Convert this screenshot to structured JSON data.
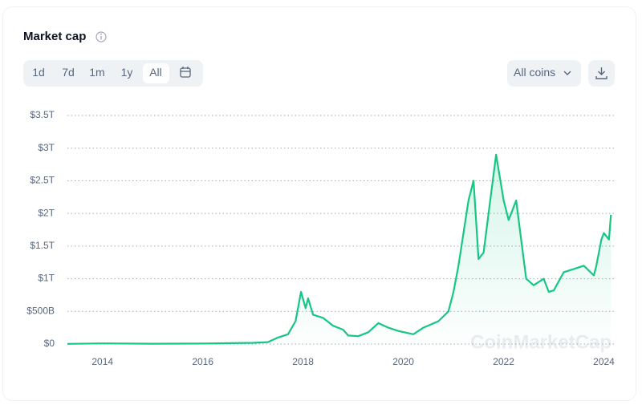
{
  "header": {
    "title": "Market cap"
  },
  "controls": {
    "ranges": [
      "1d",
      "7d",
      "1m",
      "1y",
      "All"
    ],
    "active_range": 4,
    "coin_filter": "All coins"
  },
  "watermark": "CoinMarketCap",
  "chart_data": {
    "type": "line",
    "color": "#16c784",
    "x": [
      2013.3,
      2014.0,
      2015.0,
      2016.0,
      2017.0,
      2017.3,
      2017.5,
      2017.7,
      2017.85,
      2017.96,
      2018.05,
      2018.1,
      2018.2,
      2018.4,
      2018.6,
      2018.8,
      2018.9,
      2019.1,
      2019.3,
      2019.5,
      2019.7,
      2019.9,
      2020.2,
      2020.4,
      2020.7,
      2020.9,
      2021.0,
      2021.1,
      2021.3,
      2021.4,
      2021.5,
      2021.6,
      2021.7,
      2021.85,
      2022.0,
      2022.1,
      2022.25,
      2022.35,
      2022.45,
      2022.6,
      2022.8,
      2022.9,
      2023.0,
      2023.2,
      2023.4,
      2023.6,
      2023.8,
      2023.85,
      2023.95,
      2024.0,
      2024.1,
      2024.14
    ],
    "values": [
      0.002,
      0.01,
      0.005,
      0.007,
      0.018,
      0.03,
      0.1,
      0.15,
      0.35,
      0.8,
      0.55,
      0.7,
      0.45,
      0.4,
      0.28,
      0.22,
      0.13,
      0.12,
      0.18,
      0.32,
      0.25,
      0.2,
      0.15,
      0.25,
      0.35,
      0.5,
      0.8,
      1.2,
      2.2,
      2.5,
      1.3,
      1.4,
      2.0,
      2.9,
      2.2,
      1.9,
      2.2,
      1.6,
      1.0,
      0.9,
      1.0,
      0.8,
      0.82,
      1.1,
      1.15,
      1.2,
      1.05,
      1.2,
      1.6,
      1.7,
      1.6,
      1.98
    ],
    "xlim": [
      2013.3,
      2024.2
    ],
    "xticks": [
      2014,
      2016,
      2018,
      2020,
      2022,
      2024
    ],
    "ylim": [
      0,
      3.5
    ],
    "yticks": [
      {
        "value": 0,
        "label": "$0"
      },
      {
        "value": 0.5,
        "label": "$500B"
      },
      {
        "value": 1,
        "label": "$1T"
      },
      {
        "value": 1.5,
        "label": "$1.5T"
      },
      {
        "value": 2,
        "label": "$2T"
      },
      {
        "value": 2.5,
        "label": "$2.5T"
      },
      {
        "value": 3,
        "label": "$3T"
      },
      {
        "value": 3.5,
        "label": "$3.5T"
      }
    ],
    "grid": true
  }
}
